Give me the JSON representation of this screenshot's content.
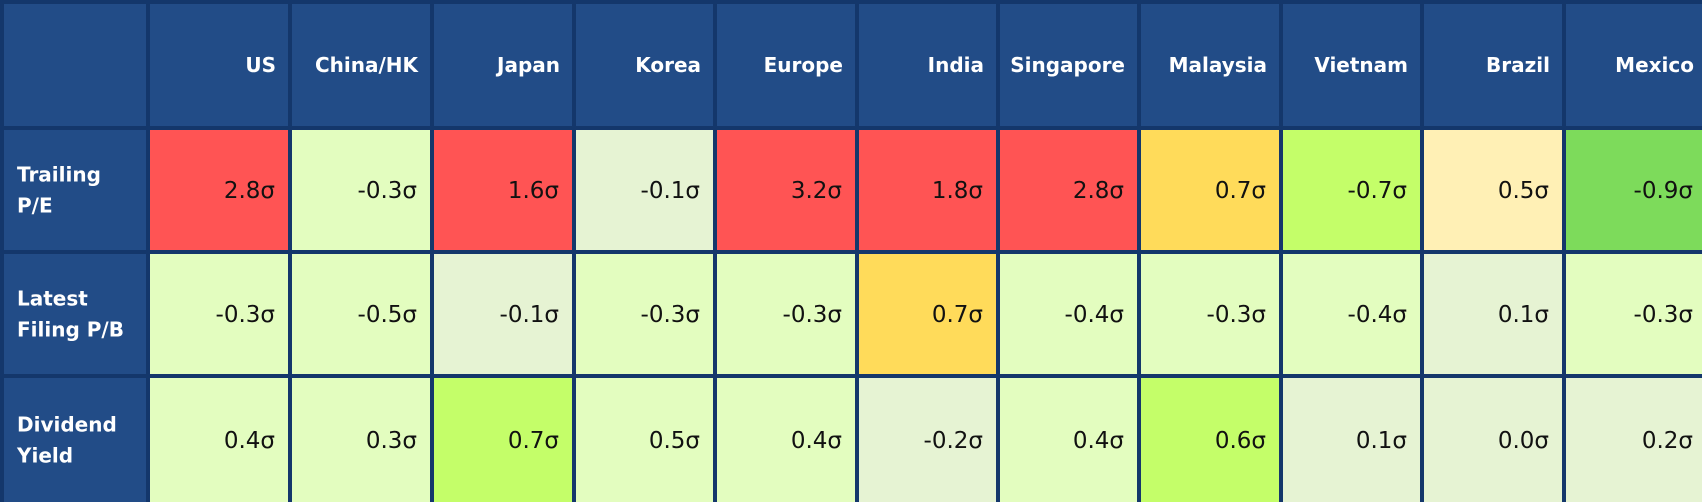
{
  "chart_data": {
    "type": "heatmap",
    "columns": [
      "US",
      "China/HK",
      "Japan",
      "Korea",
      "Europe",
      "India",
      "Singapore",
      "Malaysia",
      "Vietnam",
      "Brazil",
      "Mexico"
    ],
    "rows": [
      {
        "label_lines": [
          "Trailing",
          "P/E"
        ],
        "values": [
          2.8,
          -0.3,
          1.6,
          -0.1,
          3.2,
          1.8,
          2.8,
          0.7,
          -0.7,
          0.5,
          -0.9
        ],
        "labels": [
          "2.8σ",
          "-0.3σ",
          "1.6σ",
          "-0.1σ",
          "3.2σ",
          "1.8σ",
          "2.8σ",
          "0.7σ",
          "-0.7σ",
          "0.5σ",
          "-0.9σ"
        ],
        "colors": [
          "#ff5454",
          "#e3fdbf",
          "#ff5454",
          "#e6f3d3",
          "#ff5454",
          "#ff5454",
          "#ff5454",
          "#ffdb5a",
          "#c4fe69",
          "#fff0b5",
          "#7ddb5b"
        ]
      },
      {
        "label_lines": [
          "Latest",
          "Filing P/B"
        ],
        "values": [
          -0.3,
          -0.5,
          -0.1,
          -0.3,
          -0.3,
          0.7,
          -0.4,
          -0.3,
          -0.4,
          0.1,
          -0.3
        ],
        "labels": [
          "-0.3σ",
          "-0.5σ",
          "-0.1σ",
          "-0.3σ",
          "-0.3σ",
          "0.7σ",
          "-0.4σ",
          "-0.3σ",
          "-0.4σ",
          "0.1σ",
          "-0.3σ"
        ],
        "colors": [
          "#e3fdbf",
          "#e3fdbf",
          "#e6f3d3",
          "#e3fdbf",
          "#e3fdbf",
          "#ffdb5a",
          "#e3fdbf",
          "#e3fdbf",
          "#e3fdbf",
          "#e6f3d3",
          "#e3fdbf"
        ]
      },
      {
        "label_lines": [
          "Dividend",
          "Yield"
        ],
        "values": [
          0.4,
          0.3,
          0.7,
          0.5,
          0.4,
          -0.2,
          0.4,
          0.6,
          0.1,
          0.0,
          0.2
        ],
        "labels": [
          "0.4σ",
          "0.3σ",
          "0.7σ",
          "0.5σ",
          "0.4σ",
          "-0.2σ",
          "0.4σ",
          "0.6σ",
          "0.1σ",
          "0.0σ",
          "0.2σ"
        ],
        "colors": [
          "#e3fdbf",
          "#e3fdbf",
          "#c4fe69",
          "#e3fdbf",
          "#e3fdbf",
          "#e6f3d3",
          "#e3fdbf",
          "#c4fe69",
          "#e6f3d3",
          "#e6f3d3",
          "#e6f3d3"
        ]
      }
    ],
    "header_fill": "#224c87",
    "grid_color": "#14376b"
  }
}
